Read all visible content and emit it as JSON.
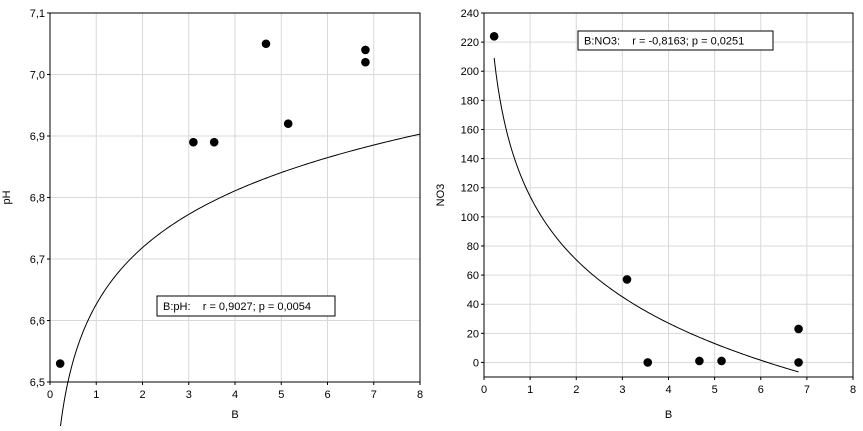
{
  "chart_data": [
    {
      "type": "scatter",
      "xlabel": "B",
      "ylabel": "pH",
      "xlim": [
        0,
        8
      ],
      "ylim": [
        6.5,
        7.1
      ],
      "x_ticks": [
        "0",
        "1",
        "2",
        "3",
        "4",
        "5",
        "6",
        "7",
        "8"
      ],
      "y_ticks": [
        "6,5",
        "6,6",
        "6,7",
        "6,8",
        "6,9",
        "7,0",
        "7,1"
      ],
      "grid": true,
      "annotation": "B:pH:    r = 0,9027; p = 0,0054",
      "points": [
        {
          "x": 0.22,
          "y": 6.53
        },
        {
          "x": 3.1,
          "y": 6.89
        },
        {
          "x": 3.55,
          "y": 6.89
        },
        {
          "x": 4.67,
          "y": 7.05
        },
        {
          "x": 5.15,
          "y": 6.92
        },
        {
          "x": 6.82,
          "y": 7.04
        },
        {
          "x": 6.82,
          "y": 7.02
        }
      ],
      "fit": {
        "model": "logarithmic",
        "a": 6.6263,
        "b": 0.1331,
        "x_range": [
          0.22,
          8
        ]
      }
    },
    {
      "type": "scatter",
      "xlabel": "B",
      "ylabel": "NO3",
      "xlim": [
        0,
        8
      ],
      "ylim": [
        -10,
        240
      ],
      "x_ticks": [
        "0",
        "1",
        "2",
        "3",
        "4",
        "5",
        "6",
        "7",
        "8"
      ],
      "y_ticks": [
        "0",
        "20",
        "40",
        "60",
        "80",
        "100",
        "120",
        "140",
        "160",
        "180",
        "200",
        "220",
        "240"
      ],
      "grid": true,
      "annotation": "B:NO3:    r = -0,8163; p = 0,0251",
      "points": [
        {
          "x": 0.22,
          "y": 224
        },
        {
          "x": 3.1,
          "y": 57
        },
        {
          "x": 3.55,
          "y": 0
        },
        {
          "x": 4.67,
          "y": 1
        },
        {
          "x": 5.15,
          "y": 1
        },
        {
          "x": 6.82,
          "y": 23
        },
        {
          "x": 6.82,
          "y": 0
        }
      ],
      "fit": {
        "model": "logarithmic",
        "a": 114.05,
        "b": -62.8,
        "x_range": [
          0.22,
          6.82
        ]
      }
    }
  ]
}
